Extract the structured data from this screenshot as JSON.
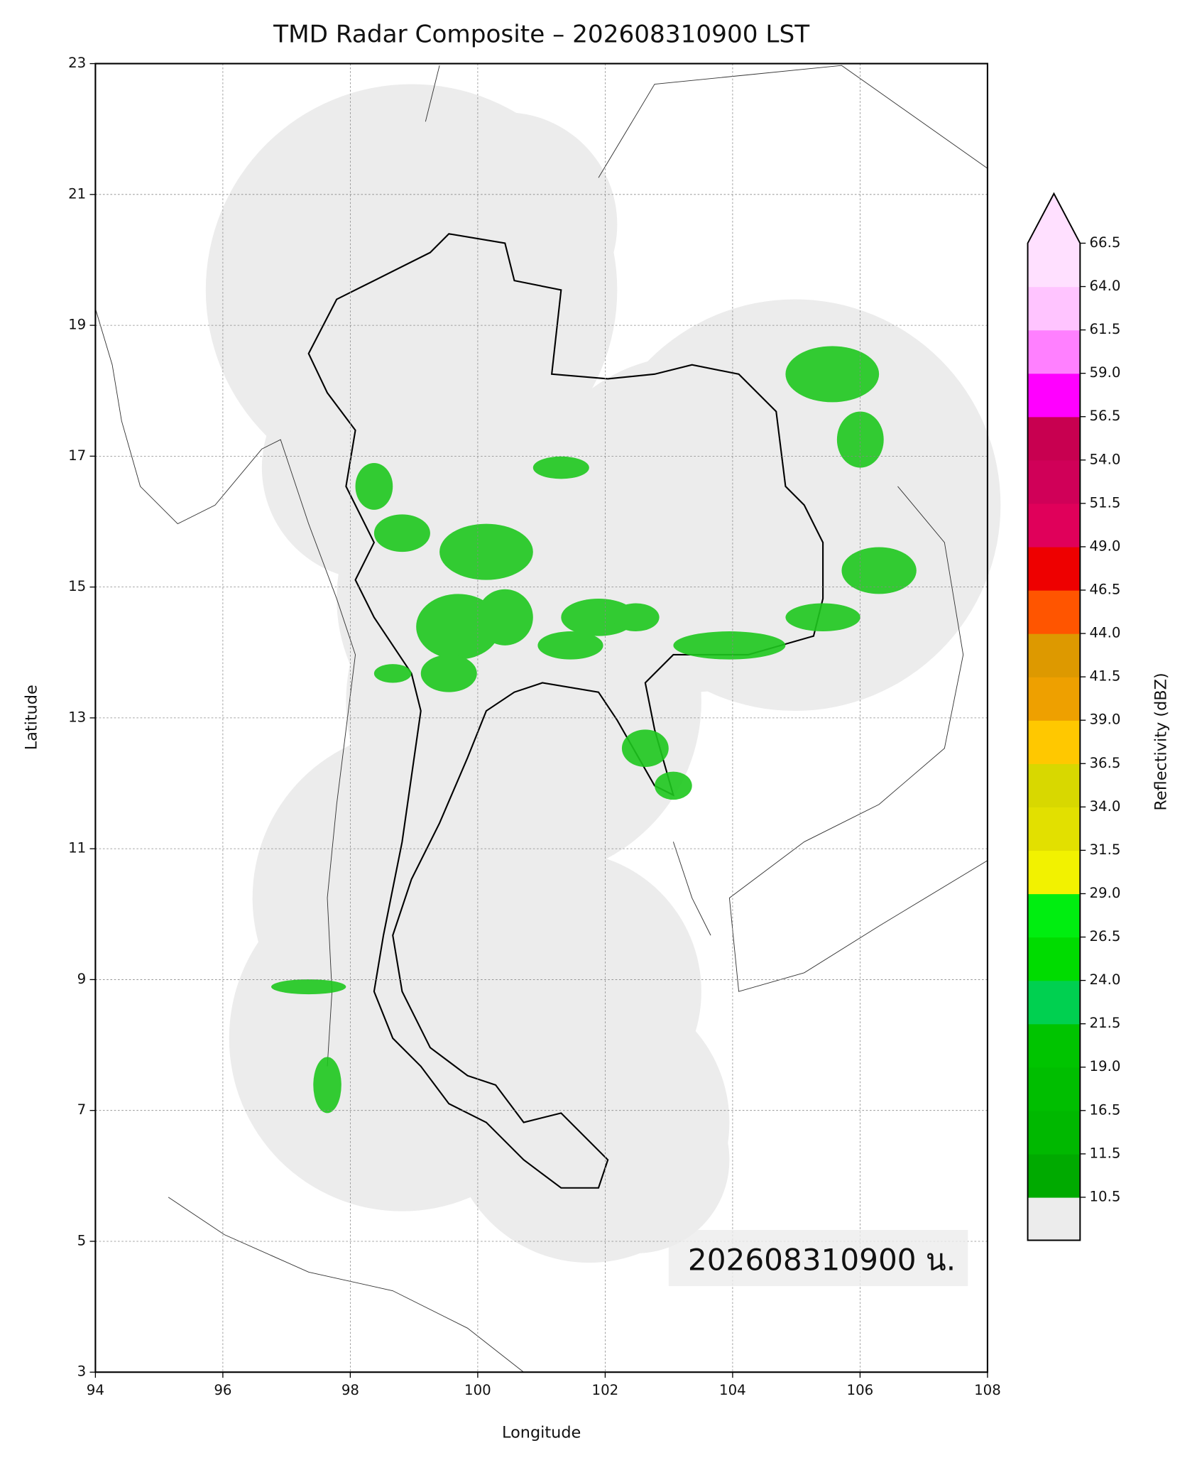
{
  "chart_data": {
    "type": "map",
    "title": "TMD Radar Composite – 202608310900 LST",
    "x_label": "Longitude",
    "y_label": "Latitude",
    "xlim": [
      94,
      108
    ],
    "xticks": [
      94,
      96,
      98,
      100,
      102,
      104,
      106,
      108
    ],
    "ylim": [
      3,
      23
    ],
    "yticks": [
      3,
      5,
      7,
      9,
      11,
      13,
      15,
      17,
      19,
      21,
      23
    ],
    "grid": true,
    "annotation": "202608310900 น.",
    "colorbar": {
      "label": "Reflectivity (dBZ)",
      "ticks": [
        10.5,
        11.5,
        16.5,
        {
          "value": 19,
          "label": "19.0"
        },
        21.5,
        {
          "value": 24,
          "label": "24.0"
        },
        26.5,
        {
          "value": 29,
          "label": "29.0"
        },
        31.5,
        {
          "value": 34,
          "label": "34.0"
        },
        36.5,
        {
          "value": 39,
          "label": "39.0"
        },
        41.5,
        {
          "value": 44,
          "label": "44.0"
        },
        46.5,
        {
          "value": 49,
          "label": "49.0"
        },
        51.5,
        {
          "value": 54,
          "label": "54.0"
        },
        56.5,
        {
          "value": 59,
          "label": "59.0"
        },
        61.5,
        {
          "value": 64,
          "label": "64.0"
        },
        66.5
      ],
      "colors": [
        "#00aa00",
        "#00b800",
        "#00be00",
        "#00c400",
        "#00d050",
        "#00dc00",
        "#00ee10",
        "#f2f200",
        "#e2e000",
        "#d8d800",
        "#ffc800",
        "#eea000",
        "#dd9900",
        "#ff5500",
        "#ee0000",
        "#e0005a",
        "#d00058",
        "#c80050",
        "#ff00ff",
        "#ff80ff",
        "#ffc4ff",
        "#ffe0ff"
      ],
      "under_color": "#ececec",
      "over_color": "#ffe0ff"
    }
  }
}
